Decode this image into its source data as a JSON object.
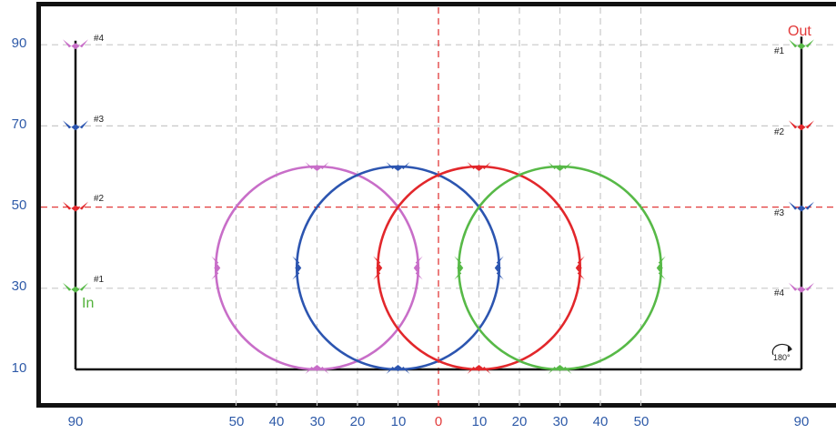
{
  "header": {
    "caption": ""
  },
  "y_axis": {
    "labels": [
      "90",
      "70",
      "50",
      "30",
      "10"
    ]
  },
  "x_axis": {
    "labels": [
      "90",
      "50",
      "40",
      "30",
      "20",
      "10",
      "0",
      "10",
      "20",
      "30",
      "40",
      "50",
      "90"
    ]
  },
  "left_column": {
    "label": "In",
    "markers": [
      "#4",
      "#3",
      "#2",
      "#1"
    ]
  },
  "right_column": {
    "label": "Out",
    "markers": [
      "#1",
      "#2",
      "#3",
      "#4"
    ],
    "turn_text": "180°"
  },
  "colors": {
    "pink": "#c86ec8",
    "blue": "#2c55b0",
    "red": "#e2272b",
    "green": "#57b947",
    "grid": "#c8c8c8",
    "axis_red": "#e23a3a",
    "frame": "#111111"
  },
  "diagram": {
    "circles": [
      {
        "name": "pink",
        "color_key": "pink",
        "center_x": -30,
        "center_y": 35,
        "radius": 25
      },
      {
        "name": "blue",
        "color_key": "blue",
        "center_x": -10,
        "center_y": 35,
        "radius": 25
      },
      {
        "name": "red",
        "color_key": "red",
        "center_x": 10,
        "center_y": 35,
        "radius": 25
      },
      {
        "name": "green",
        "color_key": "green",
        "center_x": 30,
        "center_y": 35,
        "radius": 25
      }
    ],
    "left_posts": [
      {
        "tag": "#4",
        "value": 90,
        "color_key": "pink"
      },
      {
        "tag": "#3",
        "value": 70,
        "color_key": "blue"
      },
      {
        "tag": "#2",
        "value": 50,
        "color_key": "red"
      },
      {
        "tag": "#1",
        "value": 30,
        "color_key": "green"
      }
    ],
    "right_posts": [
      {
        "tag": "#1",
        "value": 90,
        "color_key": "green"
      },
      {
        "tag": "#2",
        "value": 70,
        "color_key": "red"
      },
      {
        "tag": "#3",
        "value": 50,
        "color_key": "blue"
      },
      {
        "tag": "#4",
        "value": 30,
        "color_key": "pink"
      }
    ]
  }
}
